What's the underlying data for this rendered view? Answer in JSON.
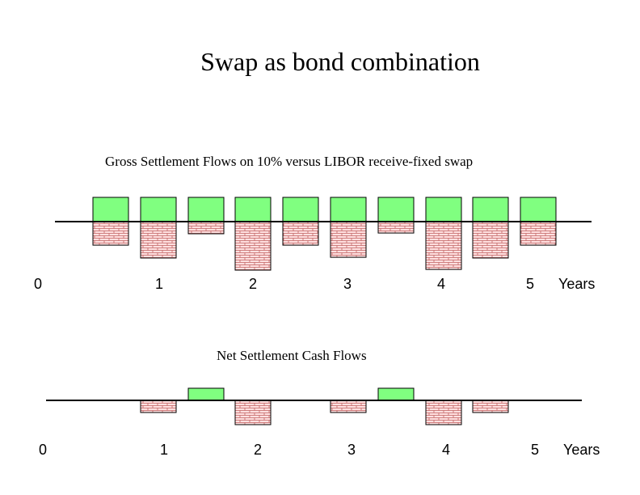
{
  "title": "Swap as bond combination",
  "colors": {
    "receipt": "#80FF80",
    "payment": "#FFE0E0",
    "brick_line": "#C06060",
    "outline": "#000000"
  },
  "gross": {
    "caption": "Gross Settlement Flows on 10% versus LIBOR receive-fixed swap",
    "tick_labels": [
      "0",
      "1",
      "2",
      "3",
      "4",
      "5"
    ],
    "unit_label": "Years",
    "receipts": [
      1,
      1,
      1,
      1,
      1,
      1,
      1,
      1,
      1,
      1
    ],
    "payments": [
      0.97,
      1.5,
      0.5,
      2.0,
      0.97,
      1.47,
      0.47,
      1.97,
      1.5,
      0.97
    ]
  },
  "net": {
    "caption": "Net Settlement Cash Flows",
    "tick_labels": [
      "0",
      "1",
      "2",
      "3",
      "4",
      "5"
    ],
    "unit_label": "Years",
    "flows": [
      0,
      -0.5,
      0.5,
      -1.0,
      0,
      -0.5,
      0.5,
      -1.0,
      -0.5,
      0
    ]
  }
}
